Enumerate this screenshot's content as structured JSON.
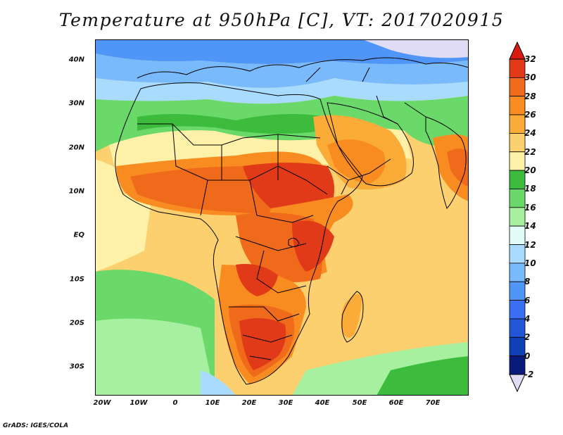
{
  "title": "Temperature at 950hPa [C], VT: 2017020915",
  "footer": "GrADS: IGES/COLA",
  "map": {
    "region": "Africa",
    "lon_range": [
      -25,
      80
    ],
    "lat_range": [
      -37,
      44
    ],
    "lat_ticks": [
      "40N",
      "30N",
      "20N",
      "10N",
      "EQ",
      "10S",
      "20S",
      "30S"
    ],
    "lon_ticks": [
      "20W",
      "10W",
      "0",
      "10E",
      "20E",
      "30E",
      "40E",
      "50E",
      "60E",
      "70E"
    ]
  },
  "colorbar": {
    "labels": [
      "32",
      "30",
      "28",
      "26",
      "24",
      "22",
      "20",
      "18",
      "16",
      "14",
      "12",
      "10",
      "8",
      "6",
      "4",
      "2",
      "0",
      "-2"
    ],
    "colors": [
      "#e03a18",
      "#f06a1c",
      "#f98c21",
      "#fbab38",
      "#fcd06e",
      "#fff2a8",
      "#3dbb3d",
      "#6ad96a",
      "#a6f0a0",
      "#e2fdf7",
      "#a8dbfe",
      "#79bafd",
      "#5095f8",
      "#3a6ef3",
      "#2256d6",
      "#1040b8",
      "#0a1a7a"
    ],
    "min_color": "#000078",
    "max_color": "#d81a10",
    "below_color": "#e0dcf6"
  }
}
